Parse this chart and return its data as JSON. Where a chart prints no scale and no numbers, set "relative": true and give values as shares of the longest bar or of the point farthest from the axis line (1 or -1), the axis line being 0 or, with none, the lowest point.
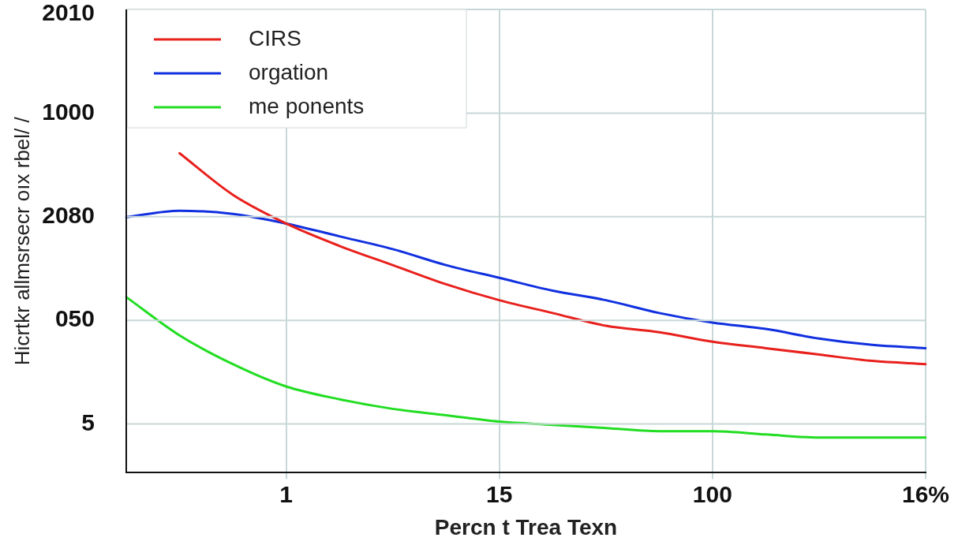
{
  "chart_data": {
    "type": "line",
    "xlabel": "Percn t Trea Texn",
    "ylabel": "Hicrtkr allmsrsecr oıx rbel/ /",
    "relative": true,
    "categories": [
      null,
      null,
      null,
      "1",
      null,
      null,
      null,
      "15",
      null,
      null,
      null,
      "100",
      null,
      null,
      null,
      "16%"
    ],
    "annotations": [
      "2010",
      "1000",
      "2080",
      "050",
      "5"
    ],
    "grid": true,
    "legend": "top left",
    "line_style": "solid",
    "series": [
      {
        "name": "CIRS",
        "color": "#e8201c",
        "values": [
          null,
          1,
          0.87,
          0.78,
          0.71,
          0.65,
          0.59,
          0.54,
          0.5,
          0.46,
          0.44,
          0.41,
          0.39,
          0.37,
          0.35,
          0.34
        ]
      },
      {
        "name": "orgation",
        "color": "#1030e0",
        "values": [
          0.8,
          0.82,
          0.81,
          0.78,
          0.74,
          0.7,
          0.65,
          0.61,
          0.57,
          0.54,
          0.5,
          0.47,
          0.45,
          0.42,
          0.4,
          0.39
        ]
      },
      {
        "name": "me ponents",
        "color": "#22dd22",
        "values": [
          0.55,
          0.43,
          0.34,
          0.27,
          0.23,
          0.2,
          0.18,
          0.16,
          0.15,
          0.14,
          0.13,
          0.13,
          0.12,
          0.11,
          0.11,
          0.11
        ]
      }
    ]
  }
}
